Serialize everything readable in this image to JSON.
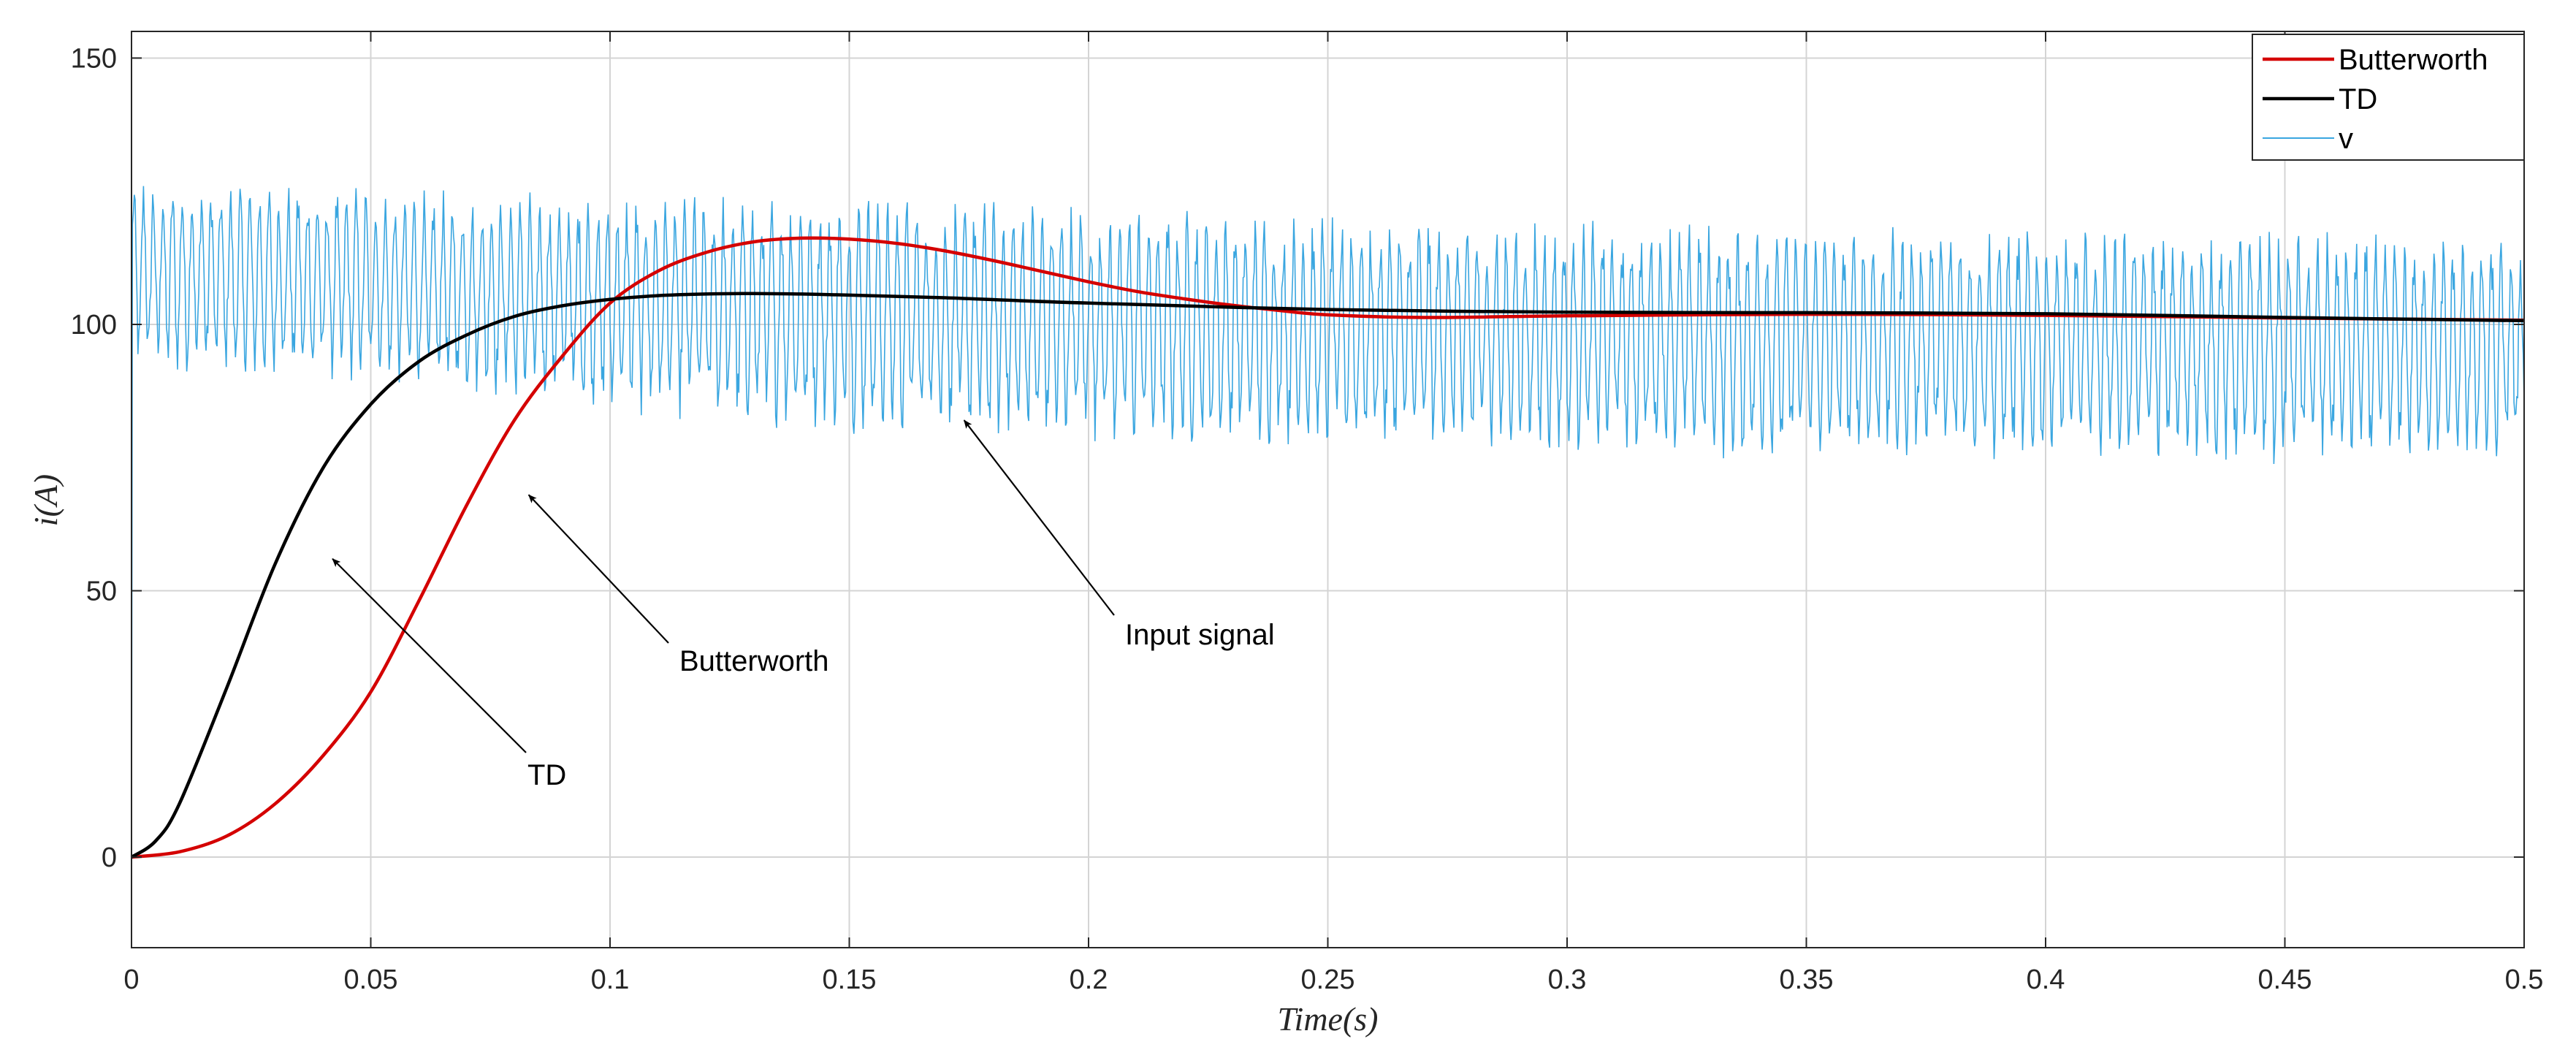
{
  "chart_data": {
    "type": "line",
    "title": "",
    "xlabel": "Time(s)",
    "ylabel": "i(A)",
    "xlim": [
      0,
      0.5
    ],
    "ylim": [
      -17,
      155
    ],
    "grid": true,
    "legend_position": "top-right",
    "x_ticks": [
      0,
      0.05,
      0.1,
      0.15,
      0.2,
      0.25,
      0.3,
      0.35,
      0.4,
      0.45,
      0.5
    ],
    "x_tick_labels": [
      "0",
      "0.05",
      "0.1",
      "0.15",
      "0.2",
      "0.25",
      "0.3",
      "0.35",
      "0.4",
      "0.45",
      "0.5"
    ],
    "y_ticks": [
      0,
      50,
      100,
      150
    ],
    "y_tick_labels": [
      "0",
      "50",
      "100",
      "150"
    ],
    "series": [
      {
        "name": "Butterworth",
        "color": "#d40000",
        "x": [
          0,
          0.01,
          0.02,
          0.03,
          0.04,
          0.05,
          0.06,
          0.07,
          0.08,
          0.09,
          0.1,
          0.11,
          0.12,
          0.13,
          0.14,
          0.15,
          0.16,
          0.17,
          0.18,
          0.19,
          0.2,
          0.21,
          0.22,
          0.23,
          0.24,
          0.25,
          0.27,
          0.3,
          0.35,
          0.4,
          0.45,
          0.5
        ],
        "y": [
          0,
          1,
          4,
          10,
          19,
          31,
          48,
          66,
          82,
          94,
          104,
          110,
          113.5,
          115.5,
          116.2,
          116,
          115.2,
          113.8,
          112,
          110,
          108,
          106.2,
          104.8,
          103.6,
          102.6,
          101.8,
          101.3,
          101.6,
          101.9,
          101.7,
          101.2,
          100.8
        ]
      },
      {
        "name": "TD",
        "color": "#000000",
        "x": [
          0,
          0.005,
          0.01,
          0.02,
          0.03,
          0.04,
          0.05,
          0.06,
          0.07,
          0.08,
          0.09,
          0.1,
          0.11,
          0.12,
          0.13,
          0.14,
          0.15,
          0.17,
          0.2,
          0.25,
          0.3,
          0.35,
          0.4,
          0.45,
          0.5
        ],
        "y": [
          0,
          3,
          10,
          32,
          55,
          73,
          85,
          93,
          98,
          101.5,
          103.5,
          104.7,
          105.4,
          105.7,
          105.8,
          105.7,
          105.5,
          105,
          104,
          102.8,
          102.3,
          102.2,
          102,
          101.3,
          100.7
        ]
      },
      {
        "name": "v",
        "color": "#3aa6e0",
        "description_envelope": {
          "x": [
            0,
            0.05,
            0.1,
            0.15,
            0.2,
            0.25,
            0.3,
            0.35,
            0.4,
            0.45,
            0.5
          ],
          "upper": [
            127,
            125,
            124,
            124,
            122,
            120,
            119,
            118,
            118,
            117,
            116
          ],
          "lower": [
            88,
            86,
            80,
            76,
            74,
            73,
            72,
            71,
            71,
            70,
            70
          ]
        },
        "mean": 104,
        "start_value": 0
      }
    ],
    "legend": [
      "Butterworth",
      "TD",
      "v"
    ],
    "annotations": [
      {
        "text": "TD",
        "target_x": 0.042,
        "target_y": 56
      },
      {
        "text": "Butterworth",
        "target_x": 0.083,
        "target_y": 68
      },
      {
        "text": "Input signal",
        "target_x": 0.174,
        "target_y": 82
      }
    ]
  }
}
